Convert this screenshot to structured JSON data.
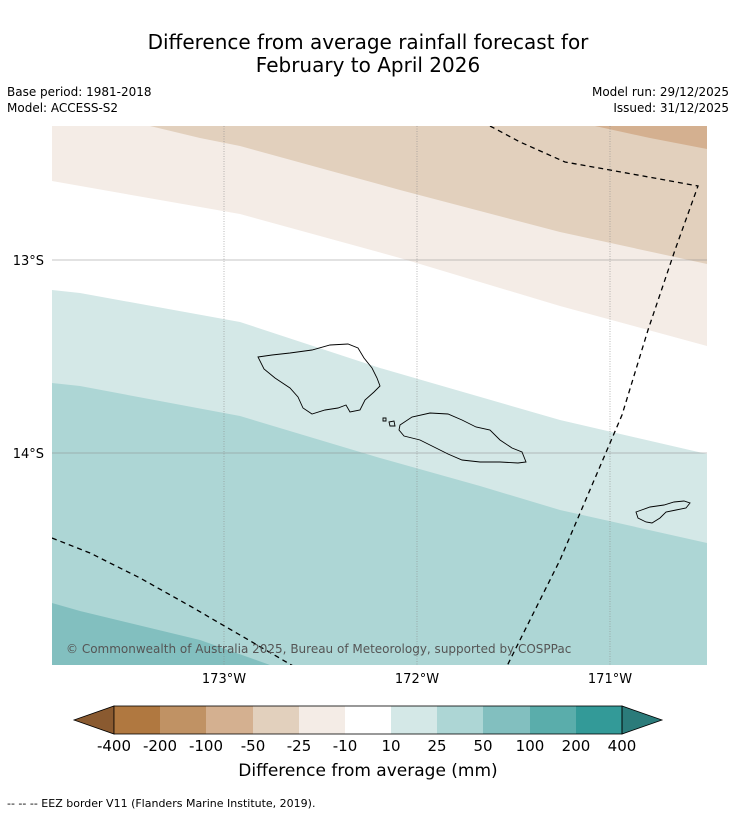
{
  "title_line1": "Difference from average rainfall forecast for",
  "title_line2": "February to April 2026",
  "meta": {
    "base_period": "Base period: 1981-2018",
    "model": "Model: ACCESS-S2",
    "model_run": "Model run: 29/12/2025",
    "issued": "Issued: 31/12/2025"
  },
  "map": {
    "lat_labels": [
      "13°S",
      "14°S"
    ],
    "lon_labels": [
      "173°W",
      "172°W",
      "171°W"
    ],
    "copyright": "© Commonwealth of Australia 2025, Bureau of Meteorology, supported by COSPPac",
    "colors": {
      "neg_200": "#b07840",
      "neg_100": "#c09264",
      "neg_50": "#d4b090",
      "neg_25": "#e2d0bd",
      "neg_10": "#f4ece6",
      "neutral": "#ffffff",
      "pos_10": "#d4e8e7",
      "pos_25": "#add6d5",
      "pos_50": "#82bfbf",
      "pos_100": "#5aadab",
      "pos_200": "#339a98",
      "pos_400": "#2b7b7a"
    }
  },
  "legend": {
    "labels": [
      "-400",
      "-200",
      "-100",
      "-50",
      "-25",
      "-10",
      "10",
      "25",
      "50",
      "100",
      "200",
      "400"
    ],
    "title": "Difference from average (mm)"
  },
  "footnote": "--  --  -- EEZ border V11 (Flanders Marine Institute, 2019)."
}
